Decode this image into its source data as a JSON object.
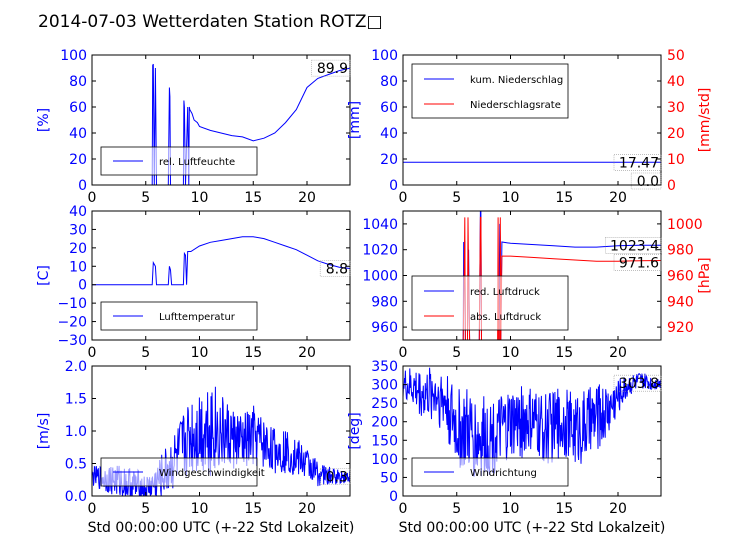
{
  "title": "2014-07-03 Wetterdaten Station ROTZ□",
  "colors": {
    "primary": "#0000ff",
    "secondary": "#ff0000",
    "axis": "#000000"
  },
  "xlabel": "Std 00:00:00 UTC (+-22 Std Lokalzeit)",
  "chart_data": [
    {
      "type": "line",
      "title": "",
      "xlabel": "",
      "ylabel": "[%]",
      "xlim": [
        0,
        24
      ],
      "ylim": [
        0,
        100
      ],
      "xticks": [
        "0",
        "5",
        "10",
        "15",
        "20"
      ],
      "yticks": [
        "0",
        "20",
        "40",
        "60",
        "80",
        "100"
      ],
      "legend": "lower-left",
      "last_value": "89.9",
      "series": [
        {
          "name": "rel. Luftfeuchte",
          "axis": "left",
          "color": "primary",
          "x": [
            0,
            5.6,
            5.65,
            5.7,
            5.8,
            5.9,
            6.0,
            6.1,
            6.2,
            7.1,
            7.2,
            7.25,
            7.3,
            7.5,
            8.4,
            8.5,
            8.55,
            8.6,
            8.7,
            8.9,
            9.0,
            9.05,
            9.1,
            9.3,
            9.5,
            9.8,
            10,
            11,
            12,
            13,
            14,
            15,
            16,
            17,
            18,
            19,
            20,
            21,
            22,
            23,
            24
          ],
          "y": [
            0,
            0,
            92,
            93,
            0,
            90,
            0,
            0,
            0,
            0,
            75,
            68,
            0,
            0,
            0,
            0,
            65,
            60,
            0,
            60,
            0,
            60,
            58,
            55,
            50,
            48,
            45,
            42,
            40,
            38,
            37,
            34,
            36,
            40,
            48,
            58,
            75,
            82,
            85,
            88,
            89.9
          ]
        }
      ]
    },
    {
      "type": "line",
      "title": "",
      "xlabel": "",
      "ylabel": "[mm]",
      "ylabel_right": "[mm/std]",
      "xlim": [
        0,
        24
      ],
      "ylim": [
        0,
        100
      ],
      "ylim_right": [
        0,
        50
      ],
      "xticks": [
        "0",
        "5",
        "10",
        "15",
        "20"
      ],
      "yticks": [
        "0",
        "20",
        "40",
        "60",
        "80",
        "100"
      ],
      "yticks_right": [
        "0",
        "10",
        "20",
        "30",
        "40",
        "50"
      ],
      "legend": "top-left",
      "last_values": [
        "17.47",
        "0.0"
      ],
      "series": [
        {
          "name": "kum. Niederschlag",
          "axis": "left",
          "color": "primary",
          "x": [
            0,
            24
          ],
          "y": [
            17.47,
            17.47
          ]
        },
        {
          "name": "Niederschlagsrate",
          "axis": "right",
          "color": "secondary",
          "x": [
            0,
            24
          ],
          "y": [
            0,
            0
          ]
        }
      ]
    },
    {
      "type": "line",
      "title": "",
      "xlabel": "",
      "ylabel": "[C]",
      "xlim": [
        0,
        24
      ],
      "ylim": [
        -30,
        40
      ],
      "xticks": [
        "0",
        "5",
        "10",
        "15",
        "20"
      ],
      "yticks": [
        "−30",
        "−20",
        "−10",
        "0",
        "10",
        "20",
        "30",
        "40"
      ],
      "legend": "lower-left",
      "last_value": "8.8",
      "series": [
        {
          "name": "Lufttemperatur",
          "axis": "left",
          "color": "primary",
          "x": [
            0,
            5.6,
            5.7,
            5.8,
            5.9,
            6.0,
            6.1,
            7.1,
            7.2,
            7.3,
            7.4,
            8.5,
            8.6,
            8.7,
            8.8,
            8.9,
            9.0,
            9.2,
            10,
            11,
            12,
            13,
            14,
            15,
            16,
            17,
            18,
            19,
            20,
            21,
            22,
            23,
            24
          ],
          "y": [
            0,
            0,
            12,
            11,
            10,
            0,
            0,
            0,
            10,
            8,
            0,
            0,
            17,
            16,
            0,
            18,
            18,
            18,
            21,
            23,
            24,
            25,
            26,
            26,
            25,
            23,
            21,
            19,
            16,
            13,
            11,
            9.5,
            8.8
          ]
        }
      ]
    },
    {
      "type": "line",
      "title": "",
      "xlabel": "",
      "ylabel": "",
      "ylabel_right": "[hPa]",
      "xlim": [
        0,
        24
      ],
      "ylim": [
        950,
        1050
      ],
      "ylim_right": [
        910,
        1010
      ],
      "xticks": [
        "0",
        "5",
        "10",
        "15",
        "20"
      ],
      "yticks": [
        "960",
        "980",
        "1000",
        "1020",
        "1040"
      ],
      "yticks_right": [
        "920",
        "940",
        "960",
        "980",
        "1000"
      ],
      "legend": "lower-left",
      "last_values": [
        "1023.4",
        "971.6"
      ],
      "series": [
        {
          "name": "red. Luftdruck",
          "axis": "left",
          "color": "primary",
          "x": [
            5.6,
            5.65,
            5.7,
            5.75,
            5.8,
            6.0,
            6.05,
            6.1,
            6.2,
            7.1,
            7.2,
            7.25,
            7.3,
            8.9,
            9.0,
            9.05,
            9.1,
            9.2,
            10,
            12,
            14,
            16,
            18,
            20,
            22,
            24
          ],
          "y": [
            950,
            1026,
            1020,
            1027,
            950,
            950,
            1015,
            1020,
            950,
            950,
            1050,
            1050,
            950,
            950,
            1040,
            1028,
            950,
            1026,
            1025,
            1024,
            1023,
            1022,
            1022,
            1023,
            1023.5,
            1023.4
          ]
        },
        {
          "name": "abs. Luftdruck",
          "axis": "right",
          "color": "secondary",
          "x": [
            5.6,
            5.7,
            5.75,
            5.8,
            6.0,
            6.05,
            6.1,
            6.2,
            7.1,
            7.2,
            7.25,
            7.3,
            8.8,
            8.85,
            8.9,
            9.0,
            9.05,
            9.1,
            9.2,
            10,
            12,
            14,
            16,
            18,
            20,
            22,
            24
          ],
          "y": [
            910,
            965,
            1005,
            910,
            910,
            1005,
            960,
            910,
            910,
            1005,
            1005,
            910,
            910,
            1005,
            910,
            910,
            1005,
            910,
            975,
            975,
            974,
            973,
            972,
            971,
            971,
            971.5,
            971.6
          ]
        }
      ]
    },
    {
      "type": "line",
      "title": "",
      "xlabel": "Std 00:00:00 UTC (+-22 Std Lokalzeit)",
      "ylabel": "[m/s]",
      "xlim": [
        0,
        24
      ],
      "ylim": [
        0,
        2
      ],
      "xticks": [
        "0",
        "5",
        "10",
        "15",
        "20"
      ],
      "yticks": [
        "0.0",
        "0.5",
        "1.0",
        "1.5",
        "2.0"
      ],
      "legend": "lower-left",
      "last_value": "0.3",
      "series": [
        {
          "name": "Windgeschwindigkeit",
          "axis": "left",
          "color": "primary",
          "x": [
            0,
            2,
            4,
            5,
            6,
            7,
            8,
            9,
            10,
            11,
            12,
            13,
            14,
            15,
            16,
            17,
            18,
            19,
            20,
            21,
            22,
            23,
            24
          ],
          "y": [
            0.3,
            0.25,
            0.15,
            0.1,
            0.2,
            0.4,
            0.6,
            0.9,
            1.0,
            1.1,
            0.95,
            0.9,
            0.8,
            0.9,
            0.8,
            0.7,
            0.7,
            0.6,
            0.5,
            0.35,
            0.3,
            0.3,
            0.3
          ],
          "spread": [
            0.15,
            0.25,
            0.3,
            0.2,
            0.3,
            0.4,
            0.5,
            0.6,
            0.7,
            0.8,
            0.6,
            0.5,
            0.45,
            0.5,
            0.4,
            0.35,
            0.35,
            0.3,
            0.25,
            0.2,
            0.15,
            0.12,
            0.1
          ]
        }
      ]
    },
    {
      "type": "line",
      "title": "",
      "xlabel": "Std 00:00:00 UTC (+-22 Std Lokalzeit)",
      "ylabel": "[deg]",
      "xlim": [
        0,
        24
      ],
      "ylim": [
        0,
        350
      ],
      "xticks": [
        "0",
        "5",
        "10",
        "15",
        "20"
      ],
      "yticks": [
        "0",
        "50",
        "100",
        "150",
        "200",
        "250",
        "300",
        "350"
      ],
      "legend": "lower-left",
      "last_value": "303.8",
      "series": [
        {
          "name": "Windrichtung",
          "axis": "left",
          "color": "primary",
          "x": [
            0,
            1,
            2,
            3,
            4,
            5,
            6,
            7,
            8,
            9,
            10,
            11,
            12,
            13,
            14,
            15,
            16,
            17,
            18,
            19,
            20,
            21,
            22,
            23,
            24
          ],
          "y": [
            300,
            290,
            270,
            280,
            250,
            180,
            170,
            150,
            160,
            170,
            190,
            200,
            200,
            180,
            190,
            200,
            180,
            190,
            210,
            230,
            270,
            300,
            310,
            305,
            303.8
          ],
          "spread": [
            40,
            60,
            70,
            80,
            90,
            110,
            120,
            120,
            110,
            100,
            100,
            100,
            90,
            100,
            100,
            90,
            100,
            100,
            90,
            80,
            50,
            30,
            25,
            20,
            15
          ]
        }
      ]
    }
  ]
}
